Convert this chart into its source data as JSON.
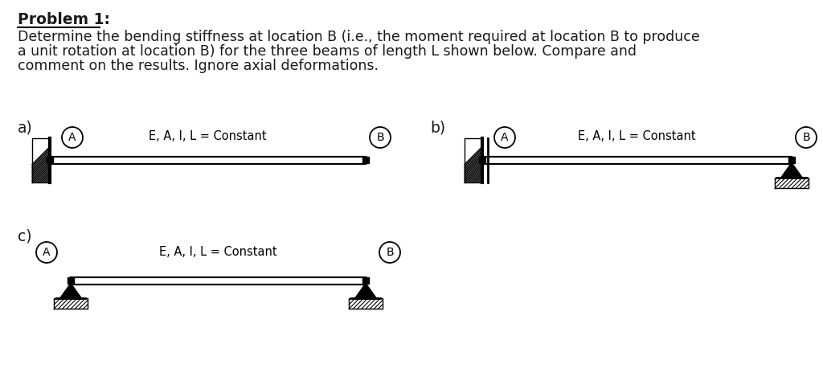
{
  "title": "Problem 1:",
  "description_line1": "Determine the bending stiffness at location B (i.e., the moment required at location B to produce",
  "description_line2": "a unit rotation at location B) for the three beams of length L shown below. Compare and",
  "description_line3": "comment on the results. Ignore axial deformations.",
  "label_a": "a)",
  "label_b": "b)",
  "label_c": "c)",
  "beam_label": "E, A, I, L = Constant",
  "node_A": "A",
  "node_B": "B",
  "bg_color": "#ffffff",
  "text_color": "#1a1a1a",
  "title_fontsize": 13.5,
  "body_fontsize": 12.5,
  "label_fontsize": 13.5,
  "diagram_fontsize": 10.5
}
